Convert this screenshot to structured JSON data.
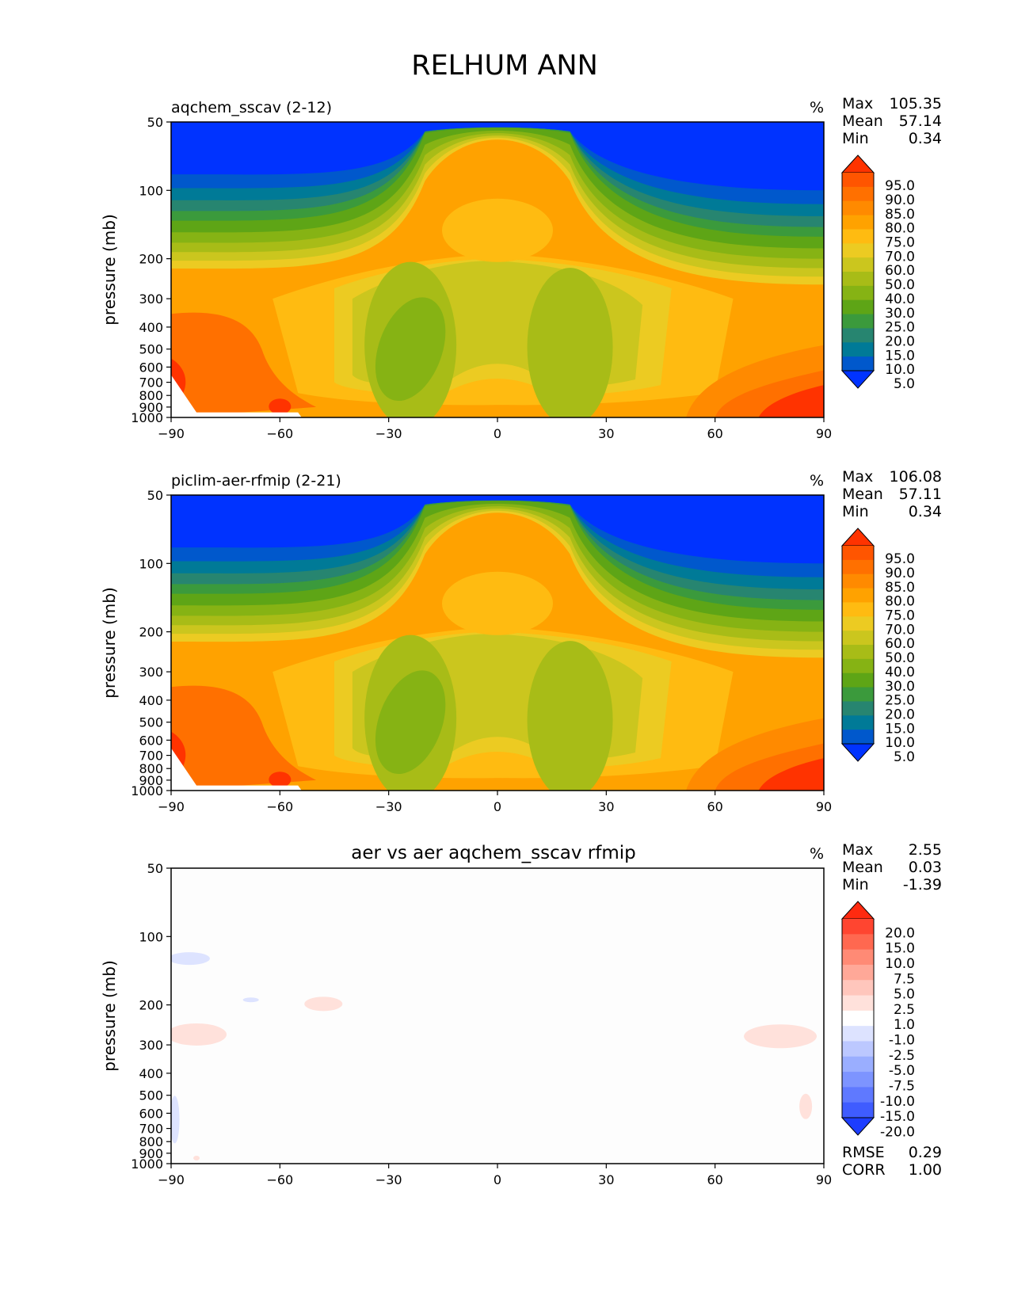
{
  "figure": {
    "title": "RELHUM ANN"
  },
  "chart_data": [
    {
      "type": "heatmap",
      "title": "aqchem_sscav (2-12)",
      "units": "%",
      "xlabel": "",
      "ylabel": "pressure (mb)",
      "xlim": [
        -90,
        90
      ],
      "ylim": [
        1000,
        50
      ],
      "x_ticks": [
        "−90",
        "−60",
        "−30",
        "0",
        "30",
        "60",
        "90"
      ],
      "y_ticks": [
        "50",
        "100",
        "200",
        "300",
        "400",
        "500",
        "600",
        "700",
        "800",
        "900",
        "1000"
      ],
      "stats": [
        {
          "label": "Max",
          "value": "105.35"
        },
        {
          "label": "Mean",
          "value": "57.14"
        },
        {
          "label": "Min",
          "value": "0.34"
        }
      ],
      "colorbar": {
        "labels": [
          "95.0",
          "90.0",
          "85.0",
          "80.0",
          "75.0",
          "70.0",
          "60.0",
          "50.0",
          "40.0",
          "30.0",
          "25.0",
          "20.0",
          "15.0",
          "10.0",
          "5.0"
        ],
        "colors": [
          "#ff3300",
          "#ff5500",
          "#ff7000",
          "#ff8a00",
          "#ffa200",
          "#ffbb11",
          "#eccb22",
          "#cbc61e",
          "#a8bc17",
          "#86b314",
          "#5ea516",
          "#3b9a3c",
          "#278570",
          "#007a97",
          "#0058cc",
          "#0033ff"
        ]
      },
      "extra_stats": []
    },
    {
      "type": "heatmap",
      "title": "piclim-aer-rfmip (2-21)",
      "units": "%",
      "xlabel": "",
      "ylabel": "pressure (mb)",
      "xlim": [
        -90,
        90
      ],
      "ylim": [
        1000,
        50
      ],
      "x_ticks": [
        "−90",
        "−60",
        "−30",
        "0",
        "30",
        "60",
        "90"
      ],
      "y_ticks": [
        "50",
        "100",
        "200",
        "300",
        "400",
        "500",
        "600",
        "700",
        "800",
        "900",
        "1000"
      ],
      "stats": [
        {
          "label": "Max",
          "value": "106.08"
        },
        {
          "label": "Mean",
          "value": "57.11"
        },
        {
          "label": "Min",
          "value": "0.34"
        }
      ],
      "colorbar": {
        "labels": [
          "95.0",
          "90.0",
          "85.0",
          "80.0",
          "75.0",
          "70.0",
          "60.0",
          "50.0",
          "40.0",
          "30.0",
          "25.0",
          "20.0",
          "15.0",
          "10.0",
          "5.0"
        ],
        "colors": [
          "#ff3300",
          "#ff5500",
          "#ff7000",
          "#ff8a00",
          "#ffa200",
          "#ffbb11",
          "#eccb22",
          "#cbc61e",
          "#a8bc17",
          "#86b314",
          "#5ea516",
          "#3b9a3c",
          "#278570",
          "#007a97",
          "#0058cc",
          "#0033ff"
        ]
      },
      "extra_stats": []
    },
    {
      "type": "heatmap",
      "title": "aer vs aer aqchem_sscav rfmip",
      "units": "%",
      "xlabel": "",
      "ylabel": "pressure (mb)",
      "xlim": [
        -90,
        90
      ],
      "ylim": [
        1000,
        50
      ],
      "x_ticks": [
        "−90",
        "−60",
        "−30",
        "0",
        "30",
        "60",
        "90"
      ],
      "y_ticks": [
        "50",
        "100",
        "200",
        "300",
        "400",
        "500",
        "600",
        "700",
        "800",
        "900",
        "1000"
      ],
      "stats": [
        {
          "label": "Max",
          "value": "2.55"
        },
        {
          "label": "Mean",
          "value": "0.03"
        },
        {
          "label": "Min",
          "value": "-1.39"
        }
      ],
      "colorbar": {
        "labels": [
          "20.0",
          "15.0",
          "10.0",
          "7.5",
          "5.0",
          "2.5",
          "1.0",
          "-1.0",
          "-2.5",
          "-5.0",
          "-7.5",
          "-10.0",
          "-15.0",
          "-20.0"
        ],
        "colors": [
          "#ff2a10",
          "#ff4530",
          "#ff6850",
          "#ff8a75",
          "#ffa898",
          "#ffc6bc",
          "#ffe1db",
          "#ffffff",
          "#dde3ff",
          "#bcc8ff",
          "#9aaeff",
          "#7d94ff",
          "#5f79ff",
          "#3f5cff",
          "#1d3dff"
        ]
      },
      "extra_stats": [
        {
          "label": "RMSE",
          "value": "0.29"
        },
        {
          "label": "CORR",
          "value": "1.00"
        }
      ]
    }
  ]
}
